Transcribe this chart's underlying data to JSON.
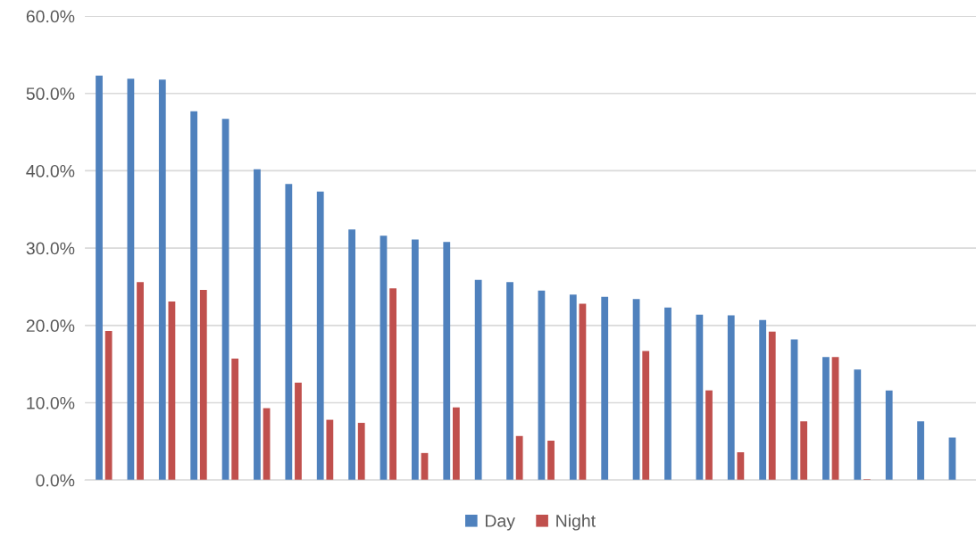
{
  "chart_data": {
    "type": "bar",
    "categories": [
      null,
      null,
      null,
      null,
      null,
      null,
      null,
      null,
      null,
      null,
      null,
      null,
      null,
      null,
      null,
      null,
      null,
      null,
      null,
      null,
      null,
      null,
      null,
      null,
      null,
      null,
      null,
      null
    ],
    "series": [
      {
        "name": "Day",
        "color": "#4f81bd",
        "values": [
          52.3,
          51.9,
          51.8,
          47.7,
          46.7,
          40.2,
          38.3,
          37.3,
          32.4,
          31.6,
          31.1,
          30.8,
          25.9,
          25.6,
          24.5,
          24.0,
          23.7,
          23.4,
          22.3,
          21.4,
          21.3,
          20.7,
          18.2,
          15.9,
          14.3,
          11.6,
          7.6,
          5.5
        ]
      },
      {
        "name": "Night",
        "color": "#c0504d",
        "values": [
          19.3,
          25.6,
          23.1,
          24.6,
          15.7,
          9.3,
          12.6,
          7.8,
          7.4,
          24.8,
          3.5,
          9.4,
          null,
          5.7,
          5.1,
          22.8,
          null,
          16.7,
          null,
          11.6,
          3.6,
          19.2,
          7.6,
          15.9,
          0.1,
          null,
          null,
          null
        ]
      }
    ],
    "ylim": [
      0,
      60
    ],
    "yticks": [
      {
        "value": 0,
        "label": "0.0%"
      },
      {
        "value": 10,
        "label": "10.0%"
      },
      {
        "value": 20,
        "label": "20.0%"
      },
      {
        "value": 30,
        "label": "30.0%"
      },
      {
        "value": 40,
        "label": "40.0%"
      },
      {
        "value": 50,
        "label": "50.0%"
      },
      {
        "value": 60,
        "label": "60.0%"
      }
    ],
    "grid": "y",
    "legend": "bottom"
  }
}
